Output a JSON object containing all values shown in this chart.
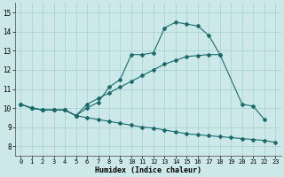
{
  "xlabel": "Humidex (Indice chaleur)",
  "bg_color": "#cce8e8",
  "grid_color": "#aad4d4",
  "line_color": "#1a6b6b",
  "xlim": [
    -0.5,
    23.5
  ],
  "ylim": [
    7.5,
    15.5
  ],
  "xticks": [
    0,
    1,
    2,
    3,
    4,
    5,
    6,
    7,
    8,
    9,
    10,
    11,
    12,
    13,
    14,
    15,
    16,
    17,
    18,
    19,
    20,
    21,
    22,
    23
  ],
  "yticks": [
    8,
    9,
    10,
    11,
    12,
    13,
    14,
    15
  ],
  "series": [
    {
      "x": [
        0,
        1,
        2,
        3,
        4,
        5,
        6,
        7,
        8,
        9,
        10,
        11,
        12,
        13,
        14,
        15,
        16,
        17,
        18,
        20,
        21,
        22
      ],
      "y": [
        10.2,
        10.0,
        9.9,
        9.9,
        9.9,
        9.6,
        10.0,
        10.3,
        11.1,
        11.5,
        12.8,
        12.8,
        12.9,
        14.2,
        14.5,
        14.4,
        14.3,
        13.8,
        12.8,
        10.2,
        10.1,
        9.4
      ]
    },
    {
      "x": [
        0,
        1,
        2,
        3,
        4,
        5,
        6,
        7,
        8,
        9,
        10,
        11,
        12,
        13,
        14,
        15,
        16,
        17,
        18
      ],
      "y": [
        10.2,
        10.0,
        9.9,
        9.9,
        9.9,
        9.6,
        10.2,
        10.5,
        10.8,
        11.1,
        11.4,
        11.7,
        12.0,
        12.3,
        12.5,
        12.7,
        12.75,
        12.8,
        12.8
      ]
    },
    {
      "x": [
        0,
        1,
        2,
        3,
        4,
        5,
        6,
        7,
        8,
        9,
        10,
        11,
        12,
        13,
        14,
        15,
        16,
        17,
        18,
        19,
        20,
        21,
        22,
        23
      ],
      "y": [
        10.2,
        10.0,
        9.9,
        9.9,
        9.9,
        9.6,
        9.5,
        9.4,
        9.3,
        9.2,
        9.1,
        9.0,
        8.95,
        8.85,
        8.75,
        8.65,
        8.6,
        8.55,
        8.5,
        8.45,
        8.4,
        8.35,
        8.3,
        8.2
      ]
    }
  ]
}
